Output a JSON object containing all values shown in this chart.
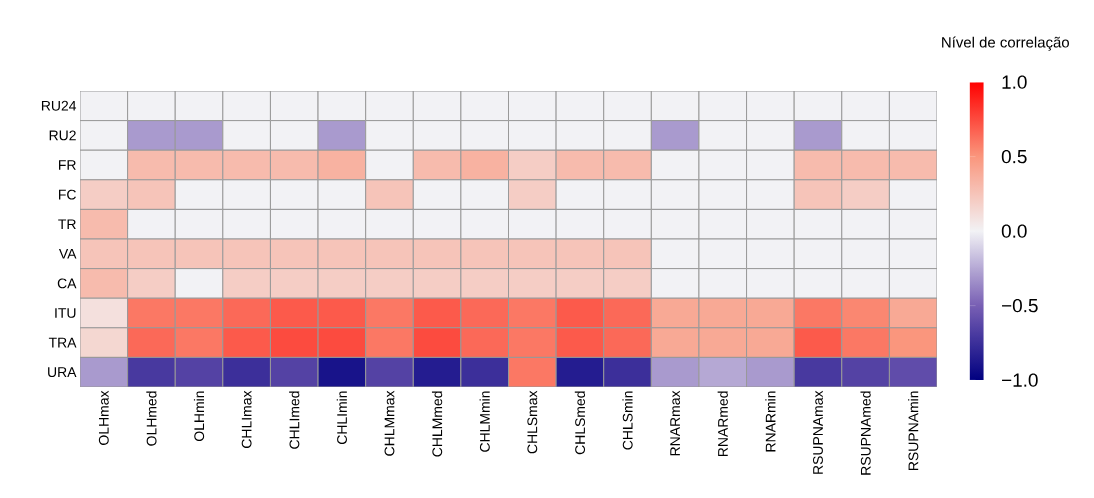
{
  "chart_data": {
    "type": "heatmap",
    "categories": [
      "OLHmax",
      "OLHmed",
      "OLHmin",
      "CHLImax",
      "CHLImed",
      "CHLImin",
      "CHLMmax",
      "CHLMmed",
      "CHLMmin",
      "CHLSmax",
      "CHLSmed",
      "CHLSmin",
      "RNARmax",
      "RNARmed",
      "RNARmin",
      "RSUPNAmax",
      "RSUPNAmed",
      "RSUPNAmin"
    ],
    "y_categories": [
      "RU24",
      "RU2",
      "FR",
      "FC",
      "TR",
      "VA",
      "CA",
      "ITU",
      "TRA",
      "URA"
    ],
    "cells": [
      [
        0,
        0,
        0,
        0,
        0,
        0,
        0,
        0,
        0,
        0,
        0,
        0,
        0,
        0,
        0,
        0,
        0,
        0
      ],
      [
        0,
        -0.3,
        -0.3,
        0,
        0,
        -0.3,
        0,
        0,
        0,
        0,
        0,
        0,
        -0.3,
        0,
        0,
        -0.3,
        0,
        0
      ],
      [
        0,
        0.3,
        0.3,
        0.3,
        0.3,
        0.35,
        0,
        0.3,
        0.35,
        0.2,
        0.3,
        0.3,
        0,
        0,
        0,
        0.3,
        0.3,
        0.3
      ],
      [
        0.2,
        0.25,
        0,
        0,
        0,
        0,
        0.25,
        0,
        0,
        0.2,
        0,
        0,
        0,
        0,
        0,
        0.25,
        0.2,
        0
      ],
      [
        0.3,
        0,
        0,
        0,
        0,
        0,
        0,
        0,
        0,
        0,
        0,
        0,
        0,
        0,
        0,
        0,
        0,
        0
      ],
      [
        0.25,
        0.25,
        0.25,
        0.25,
        0.25,
        0.25,
        0.25,
        0.25,
        0.25,
        0.25,
        0.25,
        0.25,
        0,
        0,
        0,
        0,
        0,
        0
      ],
      [
        0.3,
        0.2,
        0,
        0.2,
        0.2,
        0.2,
        0.2,
        0.2,
        0.2,
        0.2,
        0.2,
        0.2,
        0,
        0,
        0,
        0,
        0,
        0
      ],
      [
        0.1,
        0.6,
        0.6,
        0.65,
        0.7,
        0.7,
        0.6,
        0.7,
        0.65,
        0.6,
        0.7,
        0.65,
        0.4,
        0.4,
        0.4,
        0.6,
        0.55,
        0.4
      ],
      [
        0.15,
        0.65,
        0.6,
        0.7,
        0.75,
        0.75,
        0.6,
        0.75,
        0.65,
        0.6,
        0.7,
        0.65,
        0.4,
        0.4,
        0.4,
        0.7,
        0.6,
        0.5
      ],
      [
        -0.3,
        -0.7,
        -0.65,
        -0.75,
        -0.65,
        -0.9,
        -0.65,
        -0.85,
        -0.75,
        0.6,
        -0.85,
        -0.75,
        -0.3,
        -0.25,
        -0.3,
        -0.7,
        -0.65,
        -0.6
      ]
    ],
    "clim": [
      -1,
      1
    ],
    "cticks": [
      {
        "value": -1,
        "label": "−1.0"
      },
      {
        "value": -0.5,
        "label": "−0.5"
      },
      {
        "value": 0,
        "label": "0.0"
      },
      {
        "value": 0.5,
        "label": "0.5"
      },
      {
        "value": 1,
        "label": "1.0"
      }
    ],
    "clabel": "Nível de correlação"
  }
}
